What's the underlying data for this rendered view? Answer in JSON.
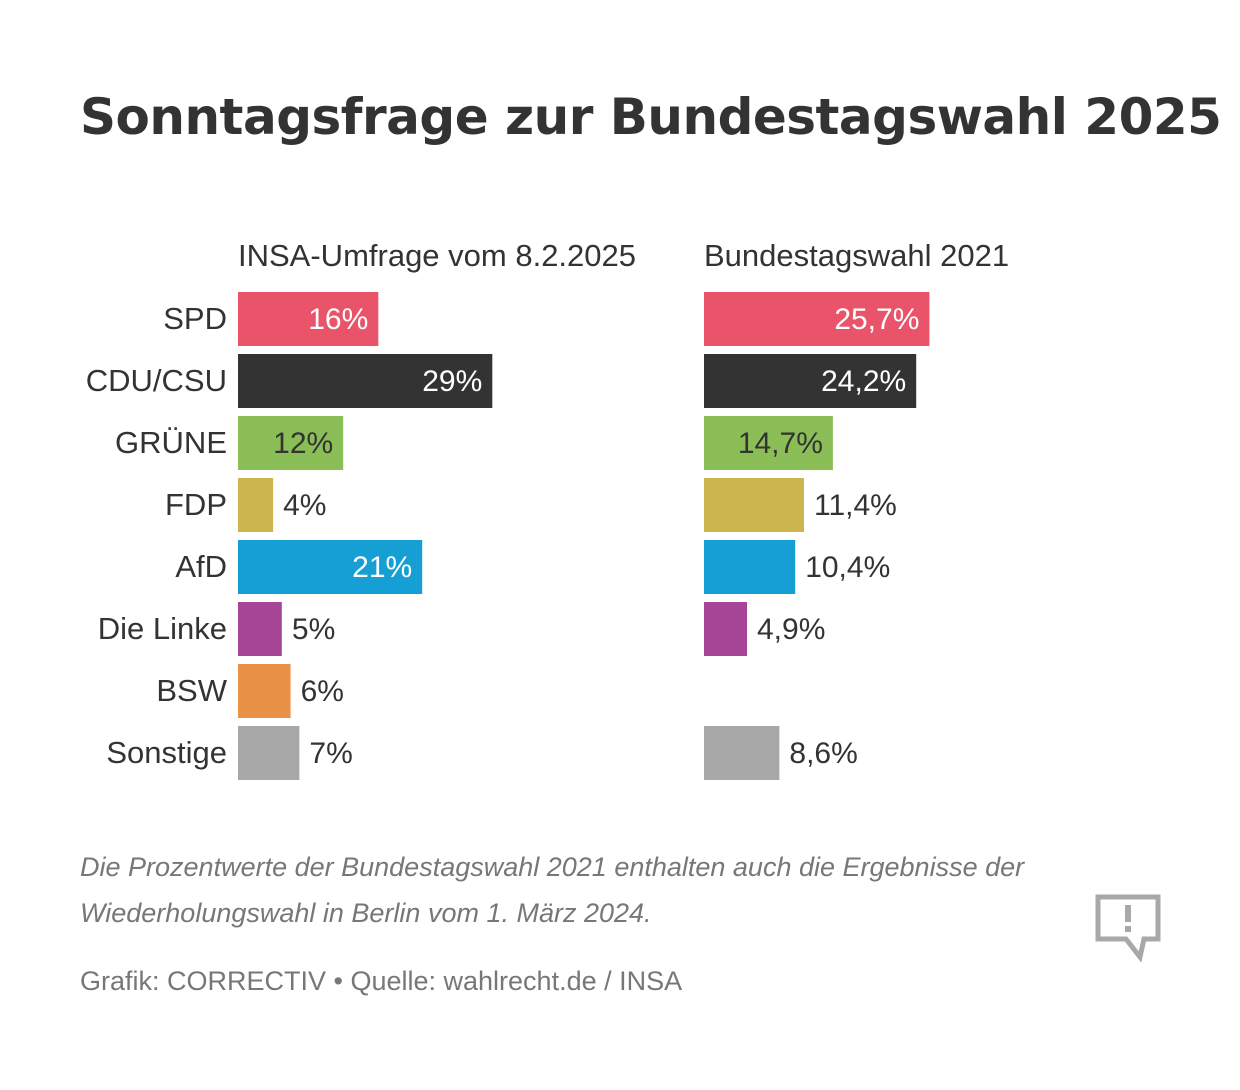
{
  "title": "Sonntagsfrage zur Bundestagswahl 2025",
  "footnote": "Die Prozentwerte der Bundestagswahl 2021 enthalten auch die Ergebnisse der Wiederholungswahl in Berlin vom 1. März 2024.",
  "source": "Grafik: CORRECTIV • Quelle: wahlrecht.de / INSA",
  "logo_icon": "speech-bubble-exclamation-icon",
  "chart_data": {
    "type": "bar",
    "orientation": "horizontal",
    "categories": [
      "SPD",
      "CDU/CSU",
      "GRÜNE",
      "FDP",
      "AfD",
      "Die Linke",
      "BSW",
      "Sonstige"
    ],
    "colors": [
      "#e9546b",
      "#333333",
      "#8bbe56",
      "#ccb54e",
      "#169fd4",
      "#a64495",
      "#ea9148",
      "#a8a8a8"
    ],
    "series": [
      {
        "name": "INSA-Umfrage vom 8.2.2025",
        "values": [
          16,
          29,
          12,
          4,
          21,
          5,
          6,
          7
        ],
        "labels": [
          "16%",
          "29%",
          "12%",
          "4%",
          "21%",
          "5%",
          "6%",
          "7%"
        ]
      },
      {
        "name": "Bundestagswahl 2021",
        "values": [
          25.7,
          24.2,
          14.7,
          11.4,
          10.4,
          4.9,
          null,
          8.6
        ],
        "labels": [
          "25,7%",
          "24,2%",
          "14,7%",
          "11,4%",
          "10,4%",
          "4,9%",
          "",
          "8,6%"
        ]
      }
    ],
    "label_color_inside_dark": "#ffffff",
    "label_color_inside_light": "#333333",
    "label_color_outside": "#333333",
    "grid": false,
    "legend": "none"
  }
}
